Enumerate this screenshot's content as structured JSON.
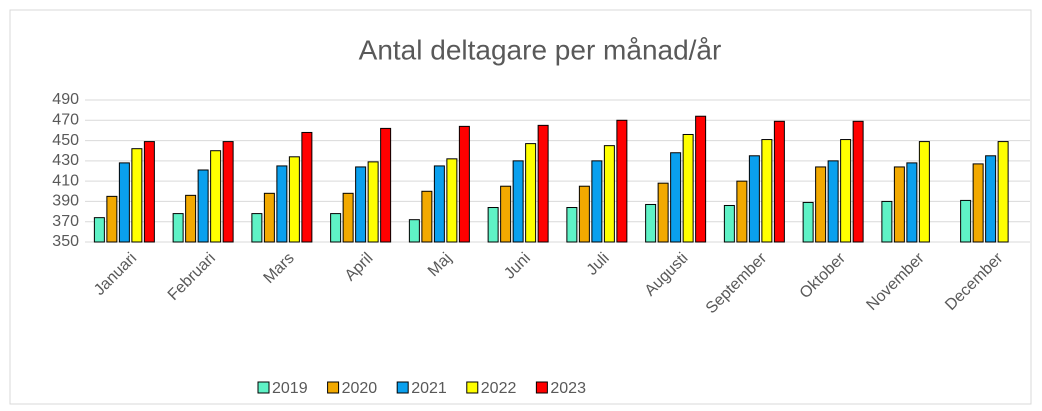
{
  "chart_data": {
    "type": "bar",
    "title": "Antal deltagare per månad/år",
    "categories": [
      "Januari",
      "Februari",
      "Mars",
      "April",
      "Maj",
      "Juni",
      "Juli",
      "Augusti",
      "September",
      "Oktober",
      "November",
      "December"
    ],
    "series": [
      {
        "name": "2019",
        "color": "#5ff2c6",
        "values": [
          374,
          378,
          378,
          378,
          372,
          384,
          384,
          387,
          386,
          389,
          390,
          391
        ]
      },
      {
        "name": "2020",
        "color": "#f2a900",
        "values": [
          395,
          396,
          398,
          398,
          400,
          405,
          405,
          408,
          410,
          424,
          424,
          427
        ]
      },
      {
        "name": "2021",
        "color": "#0aa0ee",
        "values": [
          428,
          421,
          425,
          424,
          425,
          430,
          430,
          438,
          435,
          430,
          428,
          435
        ]
      },
      {
        "name": "2022",
        "color": "#ffff00",
        "values": [
          442,
          440,
          434,
          429,
          432,
          447,
          445,
          456,
          451,
          451,
          449,
          449
        ]
      },
      {
        "name": "2023",
        "color": "#ff0000",
        "values": [
          449,
          449,
          458,
          462,
          464,
          465,
          470,
          474,
          469,
          469,
          null,
          null
        ]
      }
    ],
    "ylim": [
      350,
      490
    ],
    "yticks": [
      350,
      370,
      390,
      410,
      430,
      450,
      470,
      490
    ],
    "grid": true,
    "legend": "bottom"
  }
}
